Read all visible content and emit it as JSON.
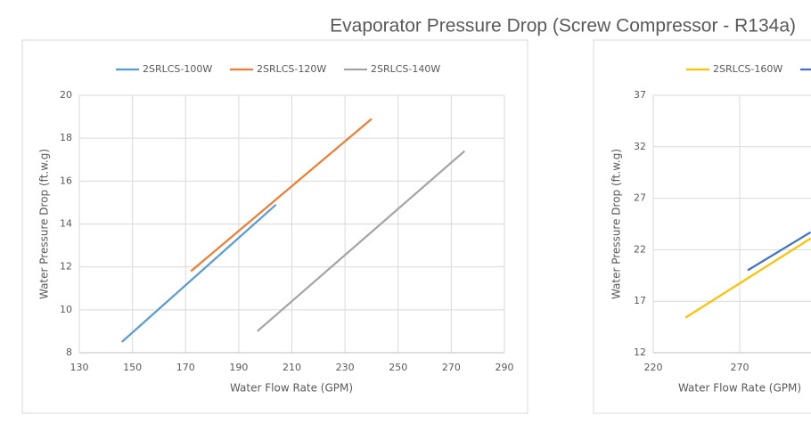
{
  "title": "Evaporator Pressure Drop (Screw Compressor - R134a)",
  "chart_data": [
    {
      "type": "line",
      "xlabel": "Water Flow Rate (GPM)",
      "ylabel": "Water Pressure Drop (ft.w.g)",
      "xlim": [
        130,
        290
      ],
      "xticks": [
        130,
        150,
        170,
        190,
        210,
        230,
        250,
        270,
        290
      ],
      "ylim": [
        8,
        20
      ],
      "yticks": [
        8,
        10,
        12,
        14,
        16,
        18,
        20
      ],
      "grid": true,
      "legend": "top",
      "series": [
        {
          "name": "2SRLCS-100W",
          "color": "#5b9bd5",
          "x": [
            146,
            204
          ],
          "values": [
            8.5,
            14.9
          ]
        },
        {
          "name": "2SRLCS-120W",
          "color": "#ed7d31",
          "x": [
            172,
            240
          ],
          "values": [
            11.8,
            18.9
          ]
        },
        {
          "name": "2SRLCS-140W",
          "color": "#a5a5a5",
          "x": [
            197,
            275
          ],
          "values": [
            9.0,
            17.4
          ]
        }
      ]
    },
    {
      "type": "line",
      "xlabel": "Water Flow Rate (GPM)",
      "ylabel": "Water Pressure Drop (ft.w.g)",
      "xlim": [
        220,
        320
      ],
      "xticks": [
        220,
        270
      ],
      "ylim": [
        12,
        37
      ],
      "yticks": [
        12,
        17,
        22,
        27,
        32,
        37
      ],
      "grid": true,
      "legend": "top",
      "series": [
        {
          "name": "2SRLCS-160W",
          "color": "#ffc000",
          "x": [
            238.6,
            311
          ],
          "values": [
            15.4,
            23.1
          ]
        },
        {
          "color": "#4472c4",
          "x": [
            274.6,
            311
          ],
          "values": [
            20.0,
            23.7
          ]
        }
      ]
    }
  ]
}
